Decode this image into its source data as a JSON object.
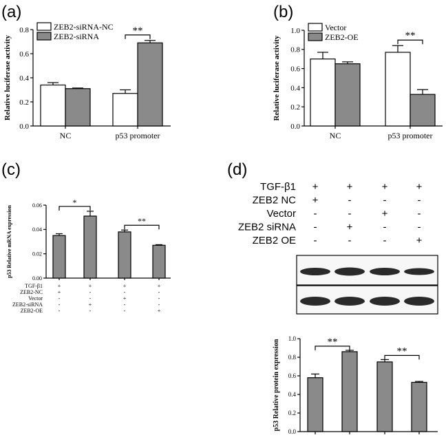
{
  "panels": {
    "a": {
      "letter": "(a)"
    },
    "b": {
      "letter": "(b)"
    },
    "c": {
      "letter": "(c)"
    },
    "d": {
      "letter": "(d)"
    }
  },
  "chart_data": [
    {
      "id": "a",
      "type": "bar",
      "ylabel": "Relative luciferase activity",
      "ylim": [
        0,
        0.8
      ],
      "yticks": [
        "0.0",
        "0.2",
        "0.4",
        "0.6",
        "0.8"
      ],
      "categories": [
        "NC",
        "p53 promoter"
      ],
      "legend_position": "top-left",
      "series": [
        {
          "name": "ZEB2-siRNA-NC",
          "color": "#ffffff",
          "values": [
            0.34,
            0.27
          ],
          "errors": [
            0.02,
            0.03
          ]
        },
        {
          "name": "ZEB2-siRNA",
          "color": "#8a8a8a",
          "values": [
            0.31,
            0.69
          ],
          "errors": [
            0.005,
            0.02
          ]
        }
      ],
      "significance": [
        {
          "label": "**"
        }
      ]
    },
    {
      "id": "b",
      "type": "bar",
      "ylabel": "Relative luciferase activity",
      "ylim": [
        0,
        1.0
      ],
      "yticks": [
        "0.0",
        "0.2",
        "0.4",
        "0.6",
        "0.8",
        "1.0"
      ],
      "categories": [
        "NC",
        "p53 promoter"
      ],
      "legend_position": "top-left",
      "series": [
        {
          "name": "Vector",
          "color": "#ffffff",
          "values": [
            0.7,
            0.77
          ],
          "errors": [
            0.07,
            0.07
          ]
        },
        {
          "name": "ZEB2-OE",
          "color": "#8a8a8a",
          "values": [
            0.65,
            0.33
          ],
          "errors": [
            0.02,
            0.05
          ]
        }
      ],
      "significance": [
        {
          "label": "**"
        }
      ]
    },
    {
      "id": "c",
      "type": "bar",
      "ylabel": "p53 Relative mRNA expression",
      "ylim": [
        0,
        0.06
      ],
      "yticks": [
        "0.00",
        "0.02",
        "0.04",
        "0.06"
      ],
      "values": [
        0.035,
        0.051,
        0.038,
        0.027
      ],
      "errors": [
        0.0015,
        0.004,
        0.0015,
        0.0005
      ],
      "significance": [
        {
          "label": "*"
        },
        {
          "label": "**"
        }
      ],
      "conditions": [
        {
          "label": "TGF-β1",
          "marks": [
            "+",
            "+",
            "+",
            "+"
          ]
        },
        {
          "label": "ZEB2-NC",
          "marks": [
            "+",
            "-",
            "-",
            "-"
          ]
        },
        {
          "label": "Vector",
          "marks": [
            "-",
            "-",
            "+",
            "-"
          ]
        },
        {
          "label": "ZEB2-siRNA",
          "marks": [
            "-",
            "+",
            "-",
            "-"
          ]
        },
        {
          "label": "ZEB2-OE",
          "marks": [
            "-",
            "-",
            "-",
            "+"
          ]
        }
      ]
    },
    {
      "id": "d",
      "type": "bar",
      "ylabel": "p53 Relative protein expression",
      "ylim": [
        0,
        1.0
      ],
      "yticks": [
        "0.0",
        "0.2",
        "0.4",
        "0.6",
        "0.8",
        "1.0"
      ],
      "values": [
        0.58,
        0.86,
        0.75,
        0.53
      ],
      "errors": [
        0.04,
        0.015,
        0.025,
        0.01
      ],
      "significance": [
        {
          "label": "**"
        },
        {
          "label": "**"
        }
      ],
      "conditions": [
        {
          "label": "TGF-β1",
          "marks": [
            "+",
            "+",
            "+",
            "+"
          ]
        },
        {
          "label": "ZEB2  NC",
          "marks": [
            "+",
            "-",
            "-",
            "-"
          ]
        },
        {
          "label": "Vector",
          "marks": [
            "-",
            "-",
            "+",
            "-"
          ]
        },
        {
          "label": "ZEB2 siRNA",
          "marks": [
            "-",
            "+",
            "-",
            "-"
          ]
        },
        {
          "label": "ZEB2 OE",
          "marks": [
            "-",
            "-",
            "-",
            "+"
          ]
        }
      ],
      "blot_lanes": 4
    }
  ]
}
